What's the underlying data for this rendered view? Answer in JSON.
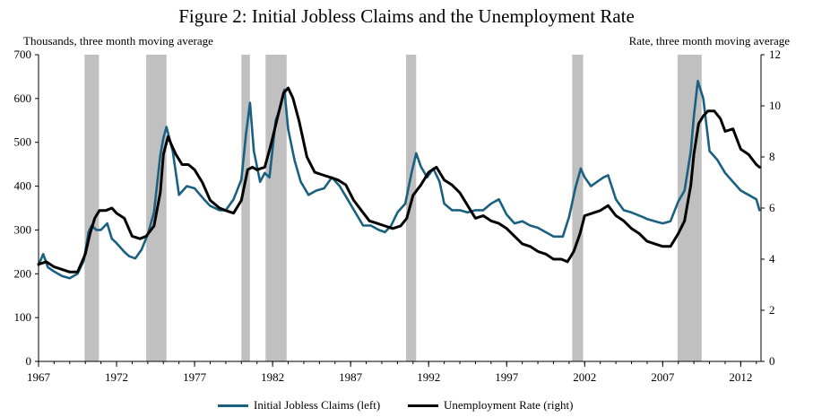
{
  "chart_data": {
    "type": "line",
    "title": "Figure 2: Initial Jobless Claims and the Unemployment Rate",
    "ylabel_left": "Thousands, three month moving average",
    "ylabel_right": "Rate, three month moving average",
    "xlim": [
      1967,
      2013.3
    ],
    "ylim_left": [
      0,
      700
    ],
    "ylim_right": [
      0,
      12
    ],
    "x_ticks": [
      1967,
      1972,
      1977,
      1982,
      1987,
      1992,
      1997,
      2002,
      2007,
      2012
    ],
    "y_ticks_left": [
      0,
      100,
      200,
      300,
      400,
      500,
      600,
      700
    ],
    "y_ticks_right": [
      0,
      2,
      4,
      6,
      8,
      10,
      12
    ],
    "recessions": [
      [
        1969.95,
        1970.87
      ],
      [
        1973.9,
        1975.2
      ],
      [
        1980.0,
        1980.55
      ],
      [
        1981.55,
        1982.9
      ],
      [
        1990.55,
        1991.2
      ],
      [
        2001.2,
        2001.9
      ],
      [
        2007.95,
        2009.5
      ]
    ],
    "series": [
      {
        "name": "Initial Jobless Claims (left)",
        "axis": "left",
        "color": "#1a6080",
        "x": [
          1967.0,
          1967.3,
          1967.6,
          1968.0,
          1968.5,
          1969.0,
          1969.5,
          1969.9,
          1970.2,
          1970.4,
          1970.7,
          1971.0,
          1971.4,
          1971.7,
          1972.0,
          1972.5,
          1972.8,
          1973.2,
          1973.6,
          1974.0,
          1974.4,
          1974.8,
          1975.0,
          1975.2,
          1975.6,
          1976.0,
          1976.5,
          1977.0,
          1977.6,
          1978.0,
          1978.6,
          1979.0,
          1979.5,
          1980.0,
          1980.3,
          1980.55,
          1980.8,
          1981.2,
          1981.5,
          1981.8,
          1982.2,
          1982.5,
          1982.75,
          1983.0,
          1983.4,
          1983.8,
          1984.3,
          1984.8,
          1985.3,
          1985.8,
          1986.3,
          1986.8,
          1987.3,
          1987.8,
          1988.3,
          1988.8,
          1989.2,
          1989.6,
          1990.0,
          1990.5,
          1990.9,
          1991.2,
          1991.5,
          1991.9,
          1992.3,
          1992.7,
          1993.0,
          1993.5,
          1994.0,
          1994.5,
          1995.0,
          1995.5,
          1996.0,
          1996.5,
          1997.0,
          1997.5,
          1998.0,
          1998.5,
          1999.0,
          1999.5,
          2000.0,
          2000.6,
          2001.0,
          2001.4,
          2001.75,
          2002.0,
          2002.4,
          2002.8,
          2003.2,
          2003.5,
          2004.0,
          2004.5,
          2005.0,
          2005.7,
          2006.0,
          2006.5,
          2007.0,
          2007.5,
          2008.0,
          2008.4,
          2008.8,
          2009.0,
          2009.25,
          2009.6,
          2010.0,
          2010.5,
          2011.0,
          2011.5,
          2012.0,
          2012.5,
          2013.0,
          2013.2
        ],
        "values": [
          220,
          245,
          215,
          205,
          195,
          190,
          200,
          230,
          295,
          310,
          300,
          300,
          315,
          280,
          270,
          250,
          240,
          235,
          255,
          290,
          340,
          470,
          510,
          535,
          480,
          380,
          400,
          395,
          370,
          355,
          345,
          345,
          370,
          415,
          520,
          590,
          480,
          410,
          430,
          420,
          550,
          580,
          620,
          530,
          460,
          410,
          380,
          390,
          395,
          420,
          400,
          370,
          340,
          310,
          310,
          300,
          295,
          310,
          340,
          360,
          430,
          475,
          445,
          420,
          440,
          410,
          360,
          345,
          345,
          340,
          345,
          345,
          360,
          370,
          335,
          315,
          320,
          310,
          305,
          295,
          285,
          285,
          330,
          395,
          440,
          420,
          400,
          410,
          420,
          425,
          370,
          345,
          340,
          330,
          325,
          320,
          315,
          320,
          365,
          390,
          480,
          560,
          640,
          600,
          480,
          460,
          430,
          410,
          390,
          380,
          370,
          345
        ]
      },
      {
        "name": "Unemployment Rate (right)",
        "axis": "right",
        "color": "#000000",
        "x": [
          1967.0,
          1967.5,
          1968.0,
          1968.5,
          1969.0,
          1969.5,
          1970.0,
          1970.3,
          1970.6,
          1970.9,
          1971.3,
          1971.7,
          1972.0,
          1972.5,
          1973.0,
          1973.5,
          1973.9,
          1974.4,
          1974.8,
          1975.0,
          1975.3,
          1975.5,
          1975.8,
          1976.2,
          1976.6,
          1977.0,
          1977.5,
          1978.0,
          1978.6,
          1979.0,
          1979.5,
          1980.0,
          1980.4,
          1980.7,
          1981.0,
          1981.5,
          1981.9,
          1982.3,
          1982.7,
          1983.0,
          1983.3,
          1983.7,
          1984.2,
          1984.7,
          1985.2,
          1985.7,
          1986.2,
          1986.7,
          1987.2,
          1987.7,
          1988.2,
          1988.7,
          1989.2,
          1989.7,
          1990.2,
          1990.6,
          1991.0,
          1991.5,
          1992.0,
          1992.5,
          1993.0,
          1993.5,
          1994.0,
          1994.5,
          1995.0,
          1995.5,
          1996.0,
          1996.5,
          1997.0,
          1997.5,
          1998.0,
          1998.5,
          1999.0,
          1999.5,
          2000.0,
          2000.5,
          2000.9,
          2001.3,
          2001.7,
          2002.0,
          2002.5,
          2003.0,
          2003.5,
          2004.0,
          2004.5,
          2005.0,
          2005.5,
          2006.0,
          2006.5,
          2007.0,
          2007.5,
          2008.0,
          2008.4,
          2008.8,
          2009.0,
          2009.3,
          2009.6,
          2009.9,
          2010.3,
          2010.7,
          2011.0,
          2011.5,
          2012.0,
          2012.5,
          2013.0,
          2013.2
        ],
        "values": [
          3.8,
          3.9,
          3.7,
          3.6,
          3.5,
          3.5,
          4.2,
          5.0,
          5.6,
          5.9,
          5.9,
          6.0,
          5.8,
          5.6,
          4.9,
          4.8,
          4.9,
          5.3,
          6.6,
          8.1,
          8.8,
          8.5,
          8.1,
          7.7,
          7.7,
          7.5,
          7.0,
          6.3,
          6.0,
          5.9,
          5.8,
          6.3,
          7.5,
          7.6,
          7.5,
          7.6,
          8.5,
          9.5,
          10.5,
          10.7,
          10.3,
          9.4,
          8.0,
          7.4,
          7.3,
          7.2,
          7.1,
          6.9,
          6.3,
          5.9,
          5.5,
          5.4,
          5.3,
          5.2,
          5.3,
          5.6,
          6.5,
          6.9,
          7.4,
          7.6,
          7.1,
          6.9,
          6.6,
          6.1,
          5.6,
          5.7,
          5.5,
          5.4,
          5.2,
          4.9,
          4.6,
          4.5,
          4.3,
          4.2,
          4.0,
          4.0,
          3.9,
          4.3,
          5.0,
          5.7,
          5.8,
          5.9,
          6.1,
          5.7,
          5.5,
          5.2,
          5.0,
          4.7,
          4.6,
          4.5,
          4.5,
          5.0,
          5.5,
          6.9,
          8.1,
          9.3,
          9.6,
          9.8,
          9.8,
          9.5,
          9.0,
          9.1,
          8.3,
          8.1,
          7.7,
          7.6
        ]
      }
    ]
  }
}
